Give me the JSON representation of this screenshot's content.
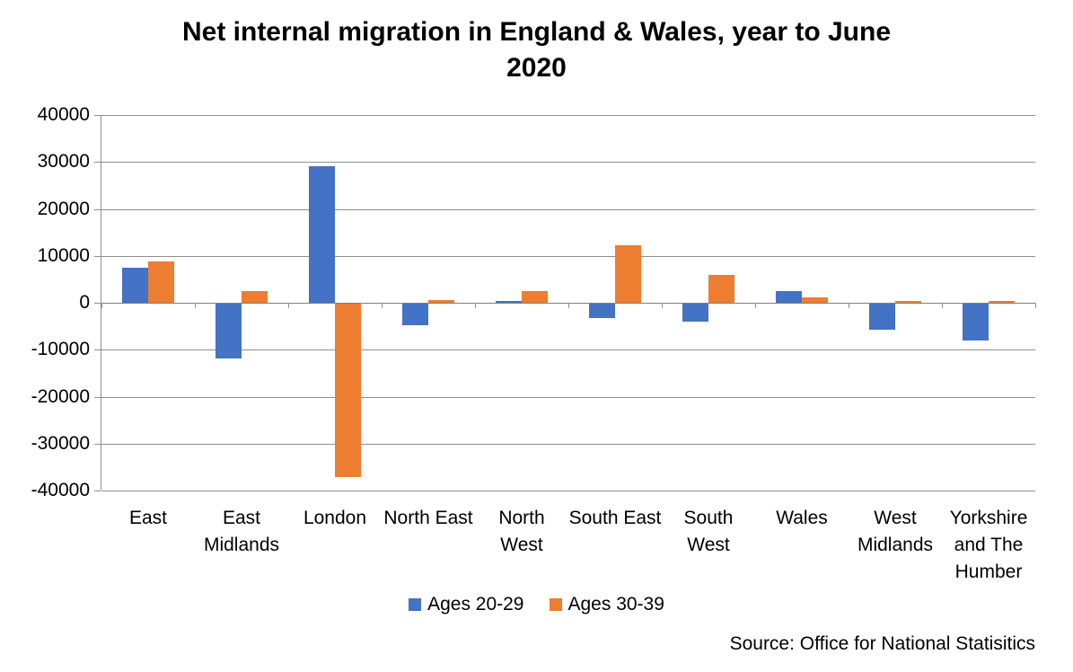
{
  "title": {
    "lines": [
      "Net internal migration in England & Wales, year to June",
      "2020"
    ]
  },
  "source": "Source: Office for National Statisitics",
  "colors": {
    "series_blue": "#4472C4",
    "series_orange": "#ED7D31",
    "gridline": "#8f8f8f",
    "axis": "#7f7f7f",
    "text": "#000000"
  },
  "chart_data": {
    "type": "bar",
    "title": "Net internal migration in England & Wales, year to June 2020",
    "categories": [
      "East",
      "East Midlands",
      "London",
      "North East",
      "North West",
      "South East",
      "South West",
      "Wales",
      "West Midlands",
      "Yorkshire and The Humber"
    ],
    "series": [
      {
        "name": "Ages 20-29",
        "color": "#4472C4",
        "values": [
          7500,
          -11700,
          29000,
          -4500,
          400,
          -3000,
          -3800,
          2400,
          -5600,
          -7900
        ]
      },
      {
        "name": "Ages 30-39",
        "color": "#ED7D31",
        "values": [
          8800,
          2500,
          -37000,
          500,
          2500,
          12200,
          5900,
          1200,
          400,
          400
        ]
      }
    ],
    "xlabel": "",
    "ylabel": "",
    "ylim": [
      -40000,
      40000
    ],
    "ytick_step": 10000,
    "yticks": [
      40000,
      30000,
      20000,
      10000,
      0,
      -10000,
      -20000,
      -30000,
      -40000
    ],
    "grid": true,
    "legend_position": "bottom",
    "annotations": [
      "Source: Office for National Statisitics"
    ]
  }
}
